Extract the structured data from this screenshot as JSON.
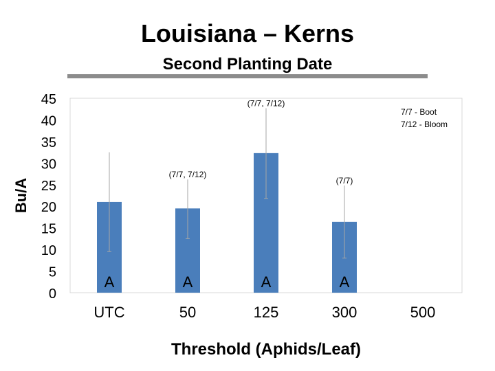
{
  "page": {
    "title": "Louisiana – Kerns",
    "subtitle": "Second Planting Date"
  },
  "chart_data": {
    "type": "bar",
    "categories": [
      "UTC",
      "50",
      "125",
      "300",
      "500"
    ],
    "values": [
      21,
      19.5,
      32.3,
      16.4,
      null
    ],
    "error_low": [
      9.5,
      12.5,
      21.8,
      8
    ],
    "error_high": [
      32.5,
      26.2,
      42.7,
      24.8
    ],
    "bar_letters": [
      "A",
      "A",
      "A",
      "A",
      ""
    ],
    "bar_annotations": [
      "",
      "(7/7, 7/12)",
      "(7/7, 7/12)",
      "(7/7)",
      ""
    ],
    "legend_note": [
      "7/7 - Boot",
      "7/12 - Bloom"
    ],
    "xlabel": "Threshold (Aphids/Leaf)",
    "ylabel": "Bu/A",
    "ylim": [
      0,
      45
    ],
    "yticks": [
      0,
      5,
      10,
      15,
      20,
      25,
      30,
      35,
      40,
      45
    ],
    "grid": false,
    "colors": {
      "bar": "#4a7ebb",
      "error": "#a6a6a6",
      "frame": "#d9d9d9"
    }
  }
}
